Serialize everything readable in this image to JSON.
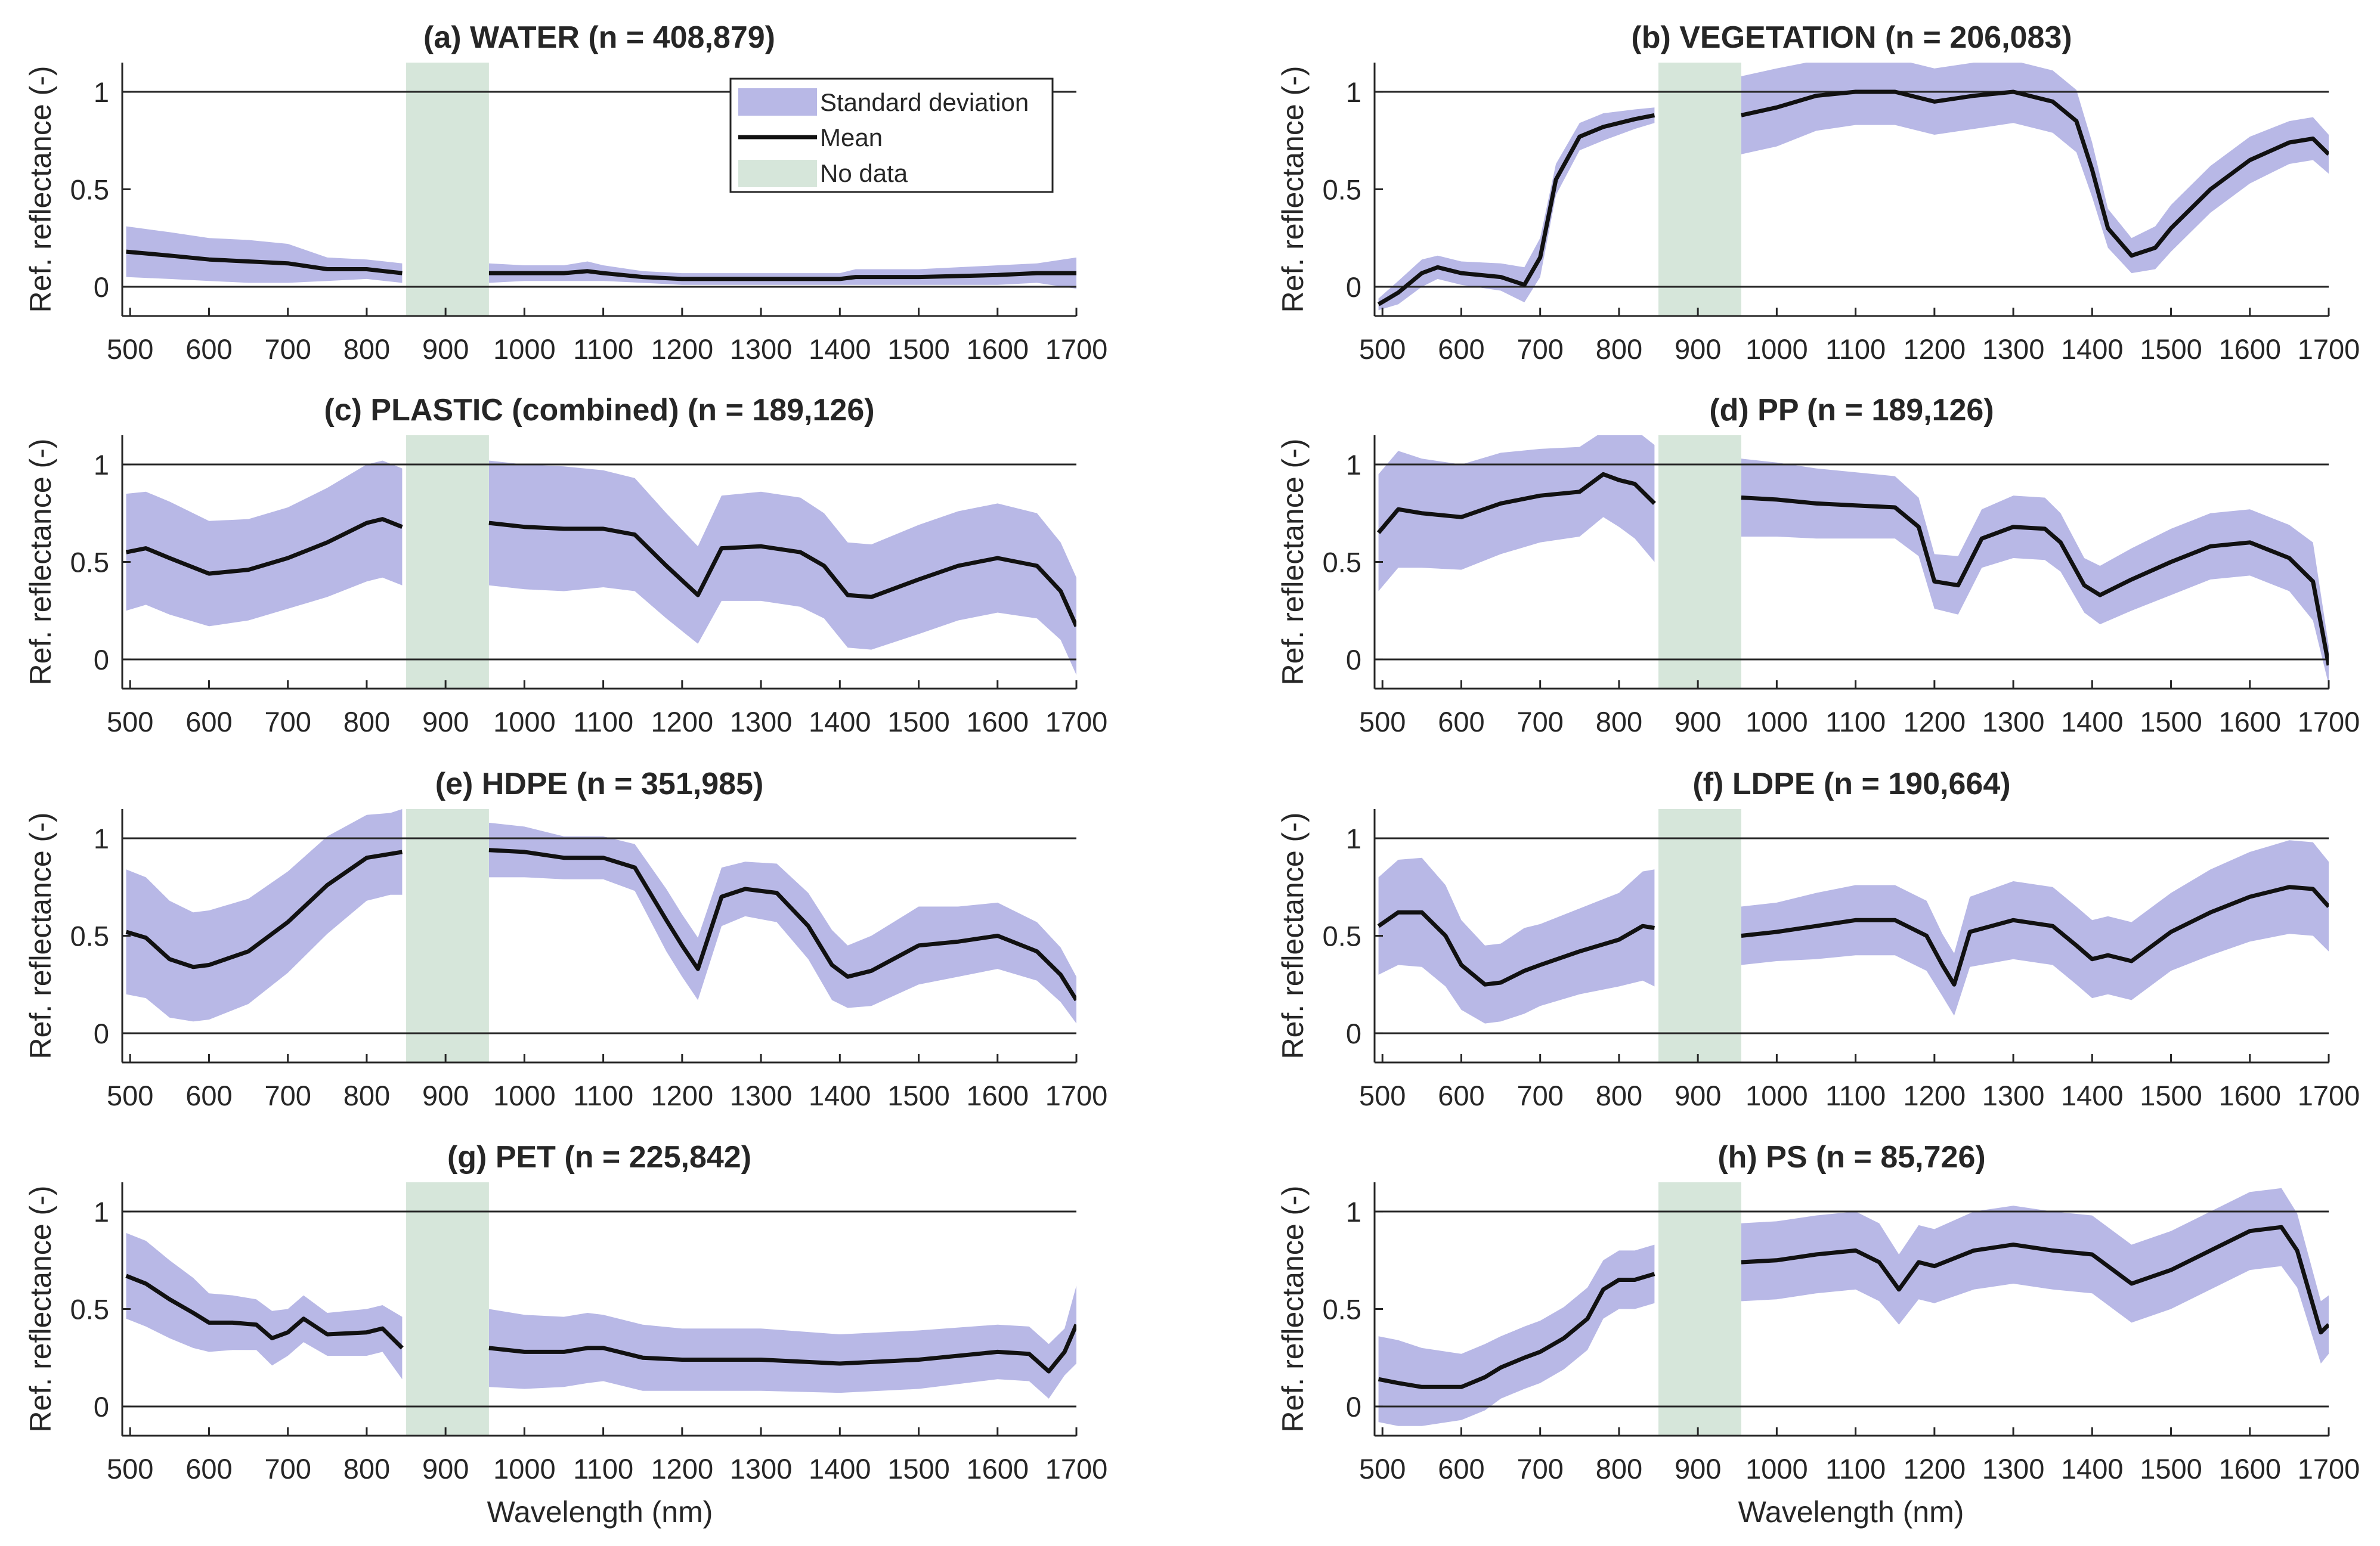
{
  "colors": {
    "std_band": "#b8b8e6",
    "mean_line": "#111111",
    "no_data": "#d6e6da",
    "ref_line": "#262626"
  },
  "axes": {
    "x_label": "Wavelength (nm)",
    "y_label": "Ref. reflectance (-)",
    "x_ticks": [
      "500",
      "600",
      "700",
      "800",
      "900",
      "1000",
      "1100",
      "1200",
      "1300",
      "1400",
      "1500",
      "1600",
      "1700"
    ],
    "y_ticks": [
      "0",
      "0.5",
      "1"
    ]
  },
  "legend": {
    "std": "Standard deviation",
    "mean": "Mean",
    "nodata": "No data"
  },
  "chart_data": [
    {
      "type": "area",
      "title": "(a) WATER (n = 408,879)",
      "xlim": [
        490,
        1700
      ],
      "ylim": [
        -0.15,
        1.15
      ],
      "no_data": [
        850,
        955
      ],
      "x": [
        495,
        550,
        600,
        650,
        700,
        750,
        800,
        845,
        955,
        1000,
        1050,
        1080,
        1100,
        1150,
        1200,
        1300,
        1400,
        1420,
        1500,
        1600,
        1650,
        1700
      ],
      "mean": [
        0.18,
        0.16,
        0.14,
        0.13,
        0.12,
        0.09,
        0.09,
        0.07,
        0.07,
        0.07,
        0.07,
        0.08,
        0.07,
        0.05,
        0.04,
        0.04,
        0.04,
        0.05,
        0.05,
        0.06,
        0.07,
        0.07
      ],
      "std": [
        0.13,
        0.12,
        0.11,
        0.11,
        0.1,
        0.06,
        0.05,
        0.05,
        0.05,
        0.04,
        0.04,
        0.05,
        0.04,
        0.03,
        0.03,
        0.03,
        0.03,
        0.04,
        0.04,
        0.05,
        0.05,
        0.08
      ]
    },
    {
      "type": "area",
      "title": "(b) VEGETATION (n = 206,083)",
      "xlim": [
        490,
        1700
      ],
      "ylim": [
        -0.15,
        1.15
      ],
      "no_data": [
        850,
        955
      ],
      "x": [
        495,
        520,
        550,
        570,
        600,
        650,
        680,
        700,
        720,
        750,
        780,
        820,
        845,
        955,
        1000,
        1050,
        1100,
        1150,
        1200,
        1250,
        1300,
        1350,
        1380,
        1400,
        1420,
        1450,
        1480,
        1500,
        1550,
        1600,
        1650,
        1680,
        1700
      ],
      "mean": [
        -0.09,
        -0.03,
        0.07,
        0.1,
        0.07,
        0.05,
        0.01,
        0.15,
        0.55,
        0.77,
        0.82,
        0.86,
        0.88,
        0.88,
        0.92,
        0.98,
        1.0,
        1.0,
        0.95,
        0.98,
        1.0,
        0.95,
        0.85,
        0.6,
        0.3,
        0.16,
        0.2,
        0.3,
        0.5,
        0.65,
        0.74,
        0.76,
        0.68
      ],
      "std": [
        0.03,
        0.06,
        0.07,
        0.06,
        0.06,
        0.07,
        0.09,
        0.1,
        0.08,
        0.07,
        0.07,
        0.05,
        0.04,
        0.2,
        0.2,
        0.18,
        0.17,
        0.17,
        0.17,
        0.17,
        0.16,
        0.16,
        0.16,
        0.14,
        0.1,
        0.09,
        0.11,
        0.12,
        0.12,
        0.12,
        0.11,
        0.11,
        0.1
      ]
    },
    {
      "type": "area",
      "title": "(c) PLASTIC (combined) (n = 189,126)",
      "xlim": [
        490,
        1700
      ],
      "ylim": [
        -0.15,
        1.15
      ],
      "no_data": [
        850,
        955
      ],
      "x": [
        495,
        520,
        550,
        600,
        650,
        700,
        750,
        800,
        820,
        845,
        955,
        1000,
        1050,
        1100,
        1140,
        1180,
        1220,
        1250,
        1300,
        1350,
        1380,
        1410,
        1440,
        1500,
        1550,
        1600,
        1650,
        1680,
        1700
      ],
      "mean": [
        0.55,
        0.57,
        0.52,
        0.44,
        0.46,
        0.52,
        0.6,
        0.7,
        0.72,
        0.68,
        0.7,
        0.68,
        0.67,
        0.67,
        0.64,
        0.48,
        0.33,
        0.57,
        0.58,
        0.55,
        0.48,
        0.33,
        0.32,
        0.41,
        0.48,
        0.52,
        0.48,
        0.35,
        0.17
      ],
      "std": [
        0.3,
        0.29,
        0.29,
        0.27,
        0.26,
        0.26,
        0.28,
        0.3,
        0.3,
        0.3,
        0.32,
        0.32,
        0.32,
        0.3,
        0.29,
        0.27,
        0.25,
        0.27,
        0.28,
        0.28,
        0.27,
        0.27,
        0.27,
        0.28,
        0.28,
        0.28,
        0.27,
        0.25,
        0.25
      ]
    },
    {
      "type": "area",
      "title": "(d) PP (n = 189,126)",
      "xlim": [
        490,
        1700
      ],
      "ylim": [
        -0.15,
        1.15
      ],
      "no_data": [
        850,
        955
      ],
      "x": [
        495,
        520,
        550,
        600,
        650,
        700,
        750,
        780,
        800,
        820,
        845,
        955,
        1000,
        1050,
        1100,
        1150,
        1180,
        1200,
        1230,
        1260,
        1300,
        1340,
        1360,
        1390,
        1410,
        1450,
        1500,
        1550,
        1600,
        1650,
        1680,
        1700
      ],
      "mean": [
        0.65,
        0.77,
        0.75,
        0.73,
        0.8,
        0.84,
        0.86,
        0.95,
        0.92,
        0.9,
        0.8,
        0.83,
        0.82,
        0.8,
        0.79,
        0.78,
        0.68,
        0.4,
        0.38,
        0.62,
        0.68,
        0.67,
        0.6,
        0.38,
        0.33,
        0.41,
        0.5,
        0.58,
        0.6,
        0.52,
        0.4,
        -0.03
      ],
      "std": [
        0.3,
        0.3,
        0.28,
        0.27,
        0.26,
        0.24,
        0.23,
        0.22,
        0.24,
        0.28,
        0.3,
        0.2,
        0.19,
        0.18,
        0.17,
        0.16,
        0.15,
        0.14,
        0.15,
        0.15,
        0.16,
        0.16,
        0.15,
        0.14,
        0.15,
        0.16,
        0.17,
        0.17,
        0.17,
        0.17,
        0.2,
        0.1
      ]
    },
    {
      "type": "area",
      "title": "(e) HDPE (n = 351,985)",
      "xlim": [
        490,
        1700
      ],
      "ylim": [
        -0.15,
        1.15
      ],
      "no_data": [
        850,
        955
      ],
      "x": [
        495,
        520,
        550,
        580,
        600,
        650,
        700,
        750,
        800,
        830,
        845,
        955,
        1000,
        1050,
        1100,
        1140,
        1180,
        1200,
        1220,
        1250,
        1280,
        1320,
        1360,
        1390,
        1410,
        1440,
        1500,
        1550,
        1600,
        1650,
        1680,
        1700
      ],
      "mean": [
        0.52,
        0.49,
        0.38,
        0.34,
        0.35,
        0.42,
        0.57,
        0.76,
        0.9,
        0.92,
        0.93,
        0.94,
        0.93,
        0.9,
        0.9,
        0.85,
        0.58,
        0.45,
        0.33,
        0.7,
        0.74,
        0.72,
        0.55,
        0.35,
        0.29,
        0.32,
        0.45,
        0.47,
        0.5,
        0.42,
        0.3,
        0.17
      ],
      "std": [
        0.32,
        0.31,
        0.3,
        0.28,
        0.28,
        0.27,
        0.26,
        0.25,
        0.22,
        0.21,
        0.22,
        0.14,
        0.13,
        0.11,
        0.11,
        0.12,
        0.16,
        0.16,
        0.16,
        0.15,
        0.14,
        0.15,
        0.17,
        0.18,
        0.16,
        0.18,
        0.2,
        0.18,
        0.17,
        0.15,
        0.14,
        0.12
      ]
    },
    {
      "type": "area",
      "title": "(f) LDPE (n = 190,664)",
      "xlim": [
        490,
        1700
      ],
      "ylim": [
        -0.15,
        1.15
      ],
      "no_data": [
        850,
        955
      ],
      "x": [
        495,
        520,
        550,
        580,
        600,
        630,
        650,
        680,
        700,
        750,
        800,
        830,
        845,
        955,
        1000,
        1050,
        1100,
        1150,
        1190,
        1210,
        1225,
        1245,
        1300,
        1350,
        1380,
        1400,
        1420,
        1450,
        1500,
        1550,
        1600,
        1650,
        1680,
        1700
      ],
      "mean": [
        0.55,
        0.62,
        0.62,
        0.5,
        0.35,
        0.25,
        0.26,
        0.32,
        0.35,
        0.42,
        0.48,
        0.55,
        0.54,
        0.5,
        0.52,
        0.55,
        0.58,
        0.58,
        0.5,
        0.35,
        0.25,
        0.52,
        0.58,
        0.55,
        0.45,
        0.38,
        0.4,
        0.37,
        0.52,
        0.62,
        0.7,
        0.75,
        0.74,
        0.65
      ],
      "std": [
        0.25,
        0.27,
        0.28,
        0.26,
        0.23,
        0.2,
        0.2,
        0.22,
        0.21,
        0.22,
        0.24,
        0.28,
        0.3,
        0.15,
        0.15,
        0.17,
        0.18,
        0.18,
        0.18,
        0.16,
        0.16,
        0.18,
        0.2,
        0.2,
        0.2,
        0.2,
        0.2,
        0.2,
        0.2,
        0.22,
        0.23,
        0.24,
        0.24,
        0.23
      ]
    },
    {
      "type": "area",
      "title": "(g) PET (n = 225,842)",
      "xlim": [
        490,
        1700
      ],
      "ylim": [
        -0.15,
        1.15
      ],
      "no_data": [
        850,
        955
      ],
      "x": [
        495,
        520,
        550,
        580,
        600,
        630,
        660,
        680,
        700,
        720,
        750,
        800,
        820,
        845,
        955,
        1000,
        1050,
        1080,
        1100,
        1150,
        1200,
        1300,
        1400,
        1500,
        1600,
        1640,
        1665,
        1685,
        1700
      ],
      "mean": [
        0.67,
        0.63,
        0.55,
        0.48,
        0.43,
        0.43,
        0.42,
        0.35,
        0.38,
        0.45,
        0.37,
        0.38,
        0.4,
        0.3,
        0.3,
        0.28,
        0.28,
        0.3,
        0.3,
        0.25,
        0.24,
        0.24,
        0.22,
        0.24,
        0.28,
        0.27,
        0.18,
        0.28,
        0.42
      ],
      "std": [
        0.22,
        0.22,
        0.2,
        0.18,
        0.15,
        0.14,
        0.13,
        0.14,
        0.12,
        0.12,
        0.11,
        0.12,
        0.12,
        0.16,
        0.2,
        0.19,
        0.18,
        0.18,
        0.17,
        0.17,
        0.16,
        0.16,
        0.15,
        0.15,
        0.14,
        0.14,
        0.14,
        0.12,
        0.2
      ]
    },
    {
      "type": "area",
      "title": "(h) PS (n = 85,726)",
      "xlim": [
        490,
        1700
      ],
      "ylim": [
        -0.15,
        1.15
      ],
      "no_data": [
        850,
        955
      ],
      "x": [
        495,
        520,
        550,
        600,
        630,
        650,
        680,
        700,
        730,
        760,
        780,
        800,
        820,
        845,
        955,
        1000,
        1050,
        1100,
        1130,
        1155,
        1180,
        1200,
        1250,
        1300,
        1350,
        1400,
        1450,
        1500,
        1550,
        1600,
        1640,
        1660,
        1690,
        1700
      ],
      "mean": [
        0.14,
        0.12,
        0.1,
        0.1,
        0.15,
        0.2,
        0.25,
        0.28,
        0.35,
        0.45,
        0.6,
        0.65,
        0.65,
        0.68,
        0.74,
        0.75,
        0.78,
        0.8,
        0.74,
        0.6,
        0.74,
        0.72,
        0.8,
        0.83,
        0.8,
        0.78,
        0.63,
        0.7,
        0.8,
        0.9,
        0.92,
        0.8,
        0.38,
        0.42
      ],
      "std": [
        0.22,
        0.22,
        0.2,
        0.17,
        0.17,
        0.16,
        0.16,
        0.16,
        0.16,
        0.16,
        0.15,
        0.15,
        0.15,
        0.15,
        0.2,
        0.2,
        0.2,
        0.2,
        0.2,
        0.18,
        0.19,
        0.19,
        0.2,
        0.2,
        0.2,
        0.2,
        0.2,
        0.2,
        0.2,
        0.2,
        0.2,
        0.19,
        0.16,
        0.15
      ]
    }
  ]
}
